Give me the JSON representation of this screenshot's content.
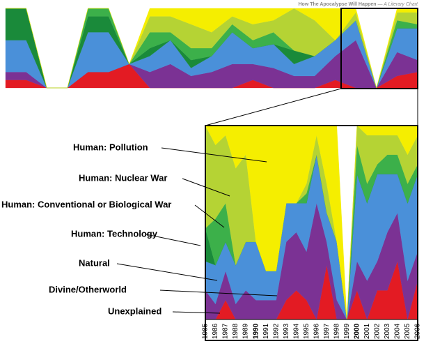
{
  "chart_data": [
    {
      "type": "area",
      "title": "How The Apocalypse Will Happen",
      "subtitle": "— A Literary Chart",
      "categories": [
        null,
        null,
        null,
        null,
        null,
        null,
        null,
        null,
        null,
        null,
        null,
        null,
        null,
        null,
        null,
        null,
        null,
        null,
        null,
        null,
        null
      ],
      "ylim": [
        0,
        100
      ],
      "series": [
        {
          "color": "#e31b23",
          "values": [
            10,
            10,
            0,
            0,
            20,
            20,
            30,
            0,
            0,
            0,
            0,
            0,
            10,
            0,
            0,
            0,
            10,
            0,
            0,
            15,
            20
          ]
        },
        {
          "color": "#7b3294",
          "values": [
            10,
            10,
            0,
            0,
            0,
            0,
            0,
            20,
            30,
            15,
            20,
            30,
            20,
            25,
            15,
            15,
            30,
            60,
            0,
            30,
            15
          ]
        },
        {
          "color": "#4a90d9",
          "values": [
            40,
            40,
            0,
            0,
            50,
            50,
            0,
            20,
            30,
            10,
            20,
            40,
            20,
            30,
            15,
            25,
            20,
            25,
            0,
            30,
            40
          ]
        },
        {
          "color": "#1a8a3a",
          "values": [
            40,
            40,
            0,
            0,
            20,
            20,
            0,
            10,
            0,
            10,
            0,
            0,
            0,
            0,
            17,
            0,
            0,
            0,
            0,
            0,
            0
          ]
        },
        {
          "color": "#3cb04a",
          "values": [
            0,
            0,
            0,
            0,
            10,
            10,
            0,
            20,
            10,
            15,
            10,
            10,
            10,
            15,
            0,
            0,
            0,
            0,
            0,
            10,
            5
          ]
        },
        {
          "color": "#b5d334",
          "values": [
            0,
            0,
            0,
            0,
            0,
            0,
            0,
            20,
            20,
            30,
            20,
            10,
            20,
            15,
            53,
            45,
            0,
            10,
            0,
            10,
            15
          ]
        },
        {
          "color": "#f5ee00",
          "values": [
            0,
            0,
            0,
            0,
            0,
            0,
            0,
            10,
            10,
            20,
            30,
            10,
            20,
            15,
            0,
            15,
            40,
            5,
            0,
            5,
            5
          ]
        }
      ]
    },
    {
      "type": "area",
      "categories": [
        "1985",
        "1986",
        "1987",
        "1988",
        "1989",
        "1990",
        "1991",
        "1992",
        "1993",
        "1994",
        "1995",
        "1996",
        "1997",
        "1998",
        "1999",
        "2000",
        "2001",
        "2002",
        "2003",
        "2004",
        "2005",
        "2006"
      ],
      "ylim": [
        0,
        100
      ],
      "series": [
        {
          "name": "Unexplained",
          "color": "#e31b23",
          "values": [
            0,
            0,
            10,
            0,
            0,
            0,
            0,
            0,
            10,
            15,
            10,
            0,
            28,
            0,
            0,
            15,
            0,
            15,
            15,
            30,
            0,
            20
          ]
        },
        {
          "name": "Divine/Otherworld",
          "color": "#7b3294",
          "values": [
            15,
            8,
            15,
            8,
            15,
            10,
            10,
            10,
            30,
            30,
            25,
            60,
            12,
            10,
            0,
            15,
            20,
            15,
            30,
            25,
            20,
            15
          ]
        },
        {
          "name": "Natural",
          "color": "#4a90d9",
          "values": [
            15,
            20,
            15,
            20,
            25,
            30,
            15,
            15,
            20,
            15,
            25,
            25,
            15,
            30,
            0,
            45,
            40,
            45,
            30,
            20,
            40,
            40
          ]
        },
        {
          "name": "Human: Technology",
          "color": "#1a8a3a",
          "values": [
            17,
            0,
            0,
            0,
            0,
            0,
            0,
            0,
            0,
            0,
            0,
            0,
            0,
            0,
            0,
            0,
            0,
            0,
            0,
            0,
            0,
            0
          ]
        },
        {
          "name": "Human: Conventional or Biological War",
          "color": "#3cb04a",
          "values": [
            0,
            24,
            20,
            0,
            0,
            0,
            0,
            0,
            0,
            0,
            5,
            0,
            0,
            0,
            0,
            15,
            10,
            5,
            10,
            10,
            10,
            5
          ]
        },
        {
          "name": "Human: Nuclear War",
          "color": "#b5d334",
          "values": [
            53,
            38,
            35,
            50,
            45,
            0,
            0,
            0,
            0,
            0,
            5,
            10,
            15,
            0,
            0,
            10,
            25,
            15,
            10,
            10,
            15,
            15
          ]
        },
        {
          "name": "Human: Pollution",
          "color": "#f5ee00",
          "values": [
            0,
            10,
            5,
            22,
            15,
            60,
            75,
            75,
            40,
            40,
            30,
            5,
            30,
            60,
            0,
            0,
            5,
            5,
            5,
            5,
            15,
            5
          ]
        }
      ]
    }
  ]
}
